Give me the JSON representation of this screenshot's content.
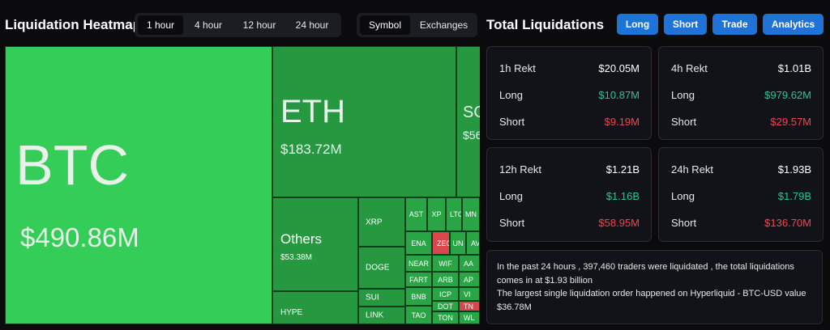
{
  "heatmap": {
    "title": "Liquidation Heatmap",
    "timeframes": [
      "1 hour",
      "4 hour",
      "12 hour",
      "24 hour"
    ],
    "timeframe_selected": "1 hour",
    "views": [
      "Symbol",
      "Exchanges"
    ],
    "view_selected": "Symbol",
    "tiles": {
      "btc": {
        "symbol": "BTC",
        "value": "$490.86M"
      },
      "eth": {
        "symbol": "ETH",
        "value": "$183.72M"
      },
      "sol": {
        "symbol": "SO",
        "value": "$56"
      },
      "others": {
        "symbol": "Others",
        "value": "$53.38M"
      },
      "hype": {
        "symbol": "HYPE"
      },
      "xrp": {
        "symbol": "XRP"
      },
      "doge": {
        "symbol": "DOGE"
      },
      "sui": {
        "symbol": "SUI"
      },
      "link": {
        "symbol": "LINK"
      },
      "ast": {
        "symbol": "AST"
      },
      "xp": {
        "symbol": "XP"
      },
      "lt": {
        "symbol": "LTC"
      },
      "mn": {
        "symbol": "MN"
      },
      "ena": {
        "symbol": "ENA"
      },
      "zec": {
        "symbol": "ZEC"
      },
      "un": {
        "symbol": "UN"
      },
      "av": {
        "symbol": "AV"
      },
      "near": {
        "symbol": "NEAR"
      },
      "wif": {
        "symbol": "WIF"
      },
      "aa": {
        "symbol": "AA"
      },
      "fart": {
        "symbol": "FART"
      },
      "arb": {
        "symbol": "ARB"
      },
      "ap": {
        "symbol": "AP"
      },
      "bnb": {
        "symbol": "BNB"
      },
      "icp": {
        "symbol": "ICP"
      },
      "vi": {
        "symbol": "VI"
      },
      "dot": {
        "symbol": "DOT"
      },
      "tn": {
        "symbol": "TN"
      },
      "tao": {
        "symbol": "TAO"
      },
      "ton": {
        "symbol": "TON"
      },
      "wl": {
        "symbol": "WL"
      }
    }
  },
  "totals": {
    "title": "Total Liquidations",
    "buttons": [
      "Long",
      "Short",
      "Trade",
      "Analytics"
    ],
    "cards": [
      {
        "label": "1h Rekt",
        "total": "$20.05M",
        "long_label": "Long",
        "long": "$10.87M",
        "short_label": "Short",
        "short": "$9.19M"
      },
      {
        "label": "4h Rekt",
        "total": "$1.01B",
        "long_label": "Long",
        "long": "$979.62M",
        "short_label": "Short",
        "short": "$29.57M"
      },
      {
        "label": "12h Rekt",
        "total": "$1.21B",
        "long_label": "Long",
        "long": "$1.16B",
        "short_label": "Short",
        "short": "$58.95M"
      },
      {
        "label": "24h Rekt",
        "total": "$1.93B",
        "long_label": "Long",
        "long": "$1.79B",
        "short_label": "Short",
        "short": "$136.70M"
      }
    ],
    "summary_line1": "In the past 24 hours , 397,460 traders were liquidated , the total liquidations comes in at $1.93 billion",
    "summary_line2": "The largest single liquidation order happened on Hyperliquid - BTC-USD value $36.78M"
  },
  "colors": {
    "accent_blue": "#1f73d6",
    "long_green": "#26c695",
    "short_red": "#f0464f",
    "heat_green_bright": "#34cd58",
    "heat_green": "#2aa546",
    "heat_red": "#d9464c"
  }
}
